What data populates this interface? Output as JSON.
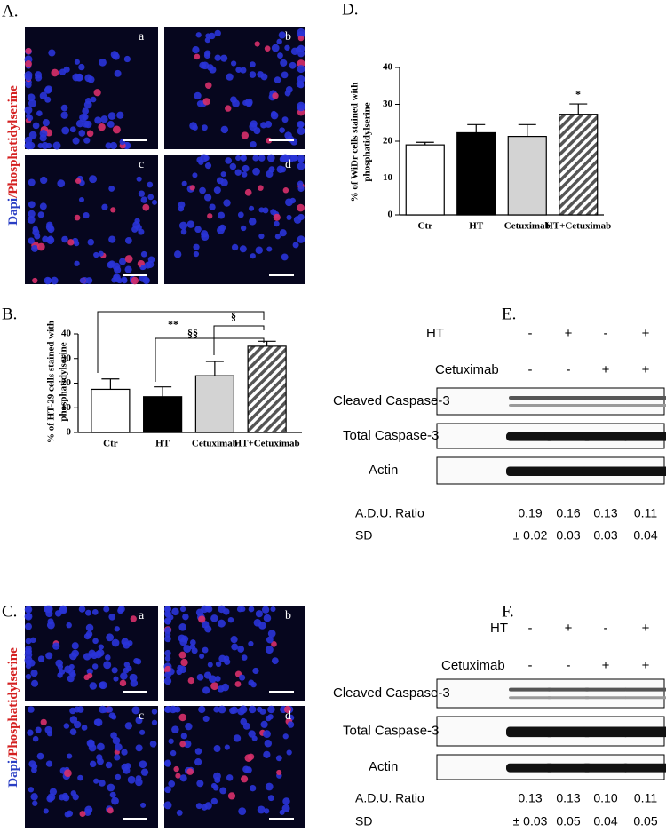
{
  "panel_letters": [
    "A.",
    "B.",
    "C.",
    "D.",
    "E.",
    "F."
  ],
  "image_sets": [
    {
      "stain": [
        "Dapi",
        "/Phosphatidylserine"
      ],
      "labels": [
        "a",
        "b",
        "c",
        "d"
      ]
    },
    {
      "stain": [
        "Dapi",
        "/Phosphatidylserine"
      ],
      "labels": [
        "a",
        "b",
        "c",
        "d"
      ]
    }
  ],
  "chart_data": [
    {
      "type": "bar",
      "ylabel": [
        "% of HT-29 cells stained with",
        "phosphatidylserine"
      ],
      "categories": [
        "Ctr",
        "HT",
        "Cetuximab",
        "HT+Cetuximab"
      ],
      "values": [
        17.5,
        14.5,
        23,
        35
      ],
      "errors": [
        4.2,
        4,
        5.8,
        2
      ],
      "colors": [
        "#ffffff",
        "#000000",
        "#d3d3d3",
        "#ffffff"
      ],
      "hatch": [
        false,
        false,
        false,
        true
      ],
      "ylim": [
        0,
        40
      ],
      "yticks": [
        0,
        10,
        20,
        30,
        40
      ],
      "annotations": [
        "**",
        "§§",
        "§"
      ]
    },
    {
      "type": "bar",
      "ylabel": [
        "% of WiDr cells stained with",
        "phosphatidylserine"
      ],
      "categories": [
        "Ctr",
        "HT",
        "Cetuximab",
        "HT+Cetuximab"
      ],
      "values": [
        19,
        22.3,
        21.3,
        27.3
      ],
      "errors": [
        0.7,
        2.2,
        3.2,
        2.8
      ],
      "colors": [
        "#ffffff",
        "#000000",
        "#d3d3d3",
        "#ffffff"
      ],
      "hatch": [
        false,
        false,
        false,
        true
      ],
      "ylim": [
        0,
        40
      ],
      "yticks": [
        0,
        10,
        20,
        30,
        40
      ],
      "annotations": [
        "*"
      ]
    }
  ],
  "blots": [
    {
      "rows": [
        {
          "label": "HT",
          "signs": [
            "-",
            "+",
            "-",
            "+"
          ]
        },
        {
          "label": "Cetuximab",
          "signs": [
            "-",
            "-",
            "+",
            "+"
          ]
        }
      ],
      "bands": [
        "Cleaved Caspase-3",
        "Total Caspase-3",
        "Actin"
      ],
      "ratio_label": "A.D.U. Ratio",
      "ratios": [
        "0.19",
        "0.16",
        "0.13",
        "0.11"
      ],
      "sd_label": "SD",
      "sd": [
        "± 0.02",
        "0.03",
        "0.03",
        "0.04"
      ]
    },
    {
      "rows": [
        {
          "label": "HT",
          "signs": [
            "-",
            "+",
            "-",
            "+"
          ]
        },
        {
          "label": "Cetuximab",
          "signs": [
            "-",
            "-",
            "+",
            "+"
          ]
        }
      ],
      "bands": [
        "Cleaved Caspase-3",
        "Total Caspase-3",
        "Actin"
      ],
      "ratio_label": "A.D.U. Ratio",
      "ratios": [
        "0.13",
        "0.13",
        "0.10",
        "0.11"
      ],
      "sd_label": "SD",
      "sd": [
        "± 0.03",
        "0.05",
        "0.04",
        "0.05"
      ]
    }
  ]
}
